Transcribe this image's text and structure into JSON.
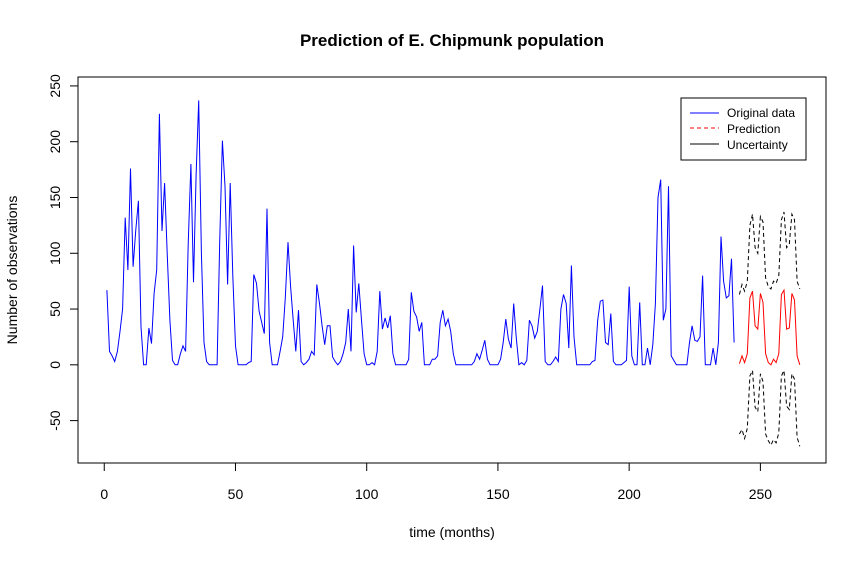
{
  "chart_data": {
    "type": "line",
    "title": "Prediction of E. Chipmunk population",
    "xlabel": "time (months)",
    "ylabel": "Number of observations",
    "xlim": [
      -10,
      275
    ],
    "ylim": [
      -88,
      258
    ],
    "xticks": [
      0,
      50,
      100,
      150,
      200,
      250
    ],
    "yticks": [
      -50,
      0,
      50,
      100,
      150,
      200,
      250
    ],
    "legend_position": "top-right",
    "grid": false,
    "legend": [
      "Original data",
      "Prediction",
      "Uncertainty"
    ],
    "colors": {
      "original": "#0000ff",
      "prediction": "#ff0000",
      "uncertainty": "#000000"
    },
    "series": [
      {
        "key": "original",
        "x_start": 1,
        "values": [
          67,
          12,
          8,
          3,
          12,
          30,
          50,
          132,
          85,
          176,
          88,
          120,
          147,
          34,
          0,
          0,
          33,
          19,
          64,
          85,
          225,
          120,
          163,
          100,
          40,
          4,
          0,
          0,
          10,
          17,
          12,
          108,
          180,
          74,
          170,
          237,
          100,
          20,
          3,
          0,
          0,
          0,
          0,
          110,
          201,
          160,
          72,
          163,
          80,
          17,
          0,
          0,
          0,
          0,
          2,
          3,
          81,
          73,
          48,
          38,
          28,
          140,
          20,
          0,
          0,
          0,
          12,
          25,
          60,
          110,
          70,
          40,
          12,
          49,
          3,
          0,
          2,
          5,
          12,
          9,
          72,
          55,
          35,
          18,
          35,
          35,
          7,
          3,
          0,
          3,
          10,
          20,
          50,
          12,
          107,
          47,
          73,
          40,
          10,
          0,
          0,
          2,
          0,
          12,
          66,
          32,
          42,
          33,
          44,
          10,
          0,
          0,
          0,
          0,
          0,
          5,
          65,
          48,
          43,
          30,
          38,
          0,
          0,
          0,
          5,
          5,
          8,
          38,
          49,
          35,
          41,
          30,
          10,
          0,
          0,
          0,
          0,
          0,
          0,
          0,
          3,
          10,
          5,
          13,
          22,
          5,
          0,
          0,
          0,
          0,
          5,
          20,
          41,
          23,
          15,
          55,
          24,
          0,
          2,
          0,
          4,
          40,
          35,
          24,
          30,
          50,
          71,
          3,
          0,
          0,
          3,
          7,
          3,
          50,
          63,
          55,
          15,
          89,
          25,
          0,
          0,
          0,
          0,
          0,
          0,
          3,
          4,
          40,
          57,
          58,
          20,
          18,
          46,
          3,
          0,
          0,
          0,
          2,
          4,
          70,
          8,
          0,
          0,
          56,
          0,
          0,
          15,
          0,
          18,
          55,
          150,
          166,
          40,
          50,
          160,
          8,
          4,
          0,
          0,
          0,
          0,
          0,
          20,
          35,
          22,
          21,
          25,
          80,
          0,
          0,
          0,
          15,
          0,
          20,
          115,
          75,
          60,
          62,
          95,
          20
        ]
      },
      {
        "key": "prediction",
        "x_start": 242,
        "values": [
          1,
          8,
          2,
          10,
          60,
          66,
          35,
          32,
          64,
          56,
          10,
          2,
          0,
          5,
          2,
          10,
          63,
          67,
          32,
          33,
          64,
          58,
          8,
          0
        ]
      },
      {
        "key": "uncertainty_upper",
        "x_start": 242,
        "values": [
          63,
          72,
          66,
          75,
          125,
          135,
          105,
          100,
          133,
          128,
          78,
          70,
          68,
          75,
          73,
          80,
          130,
          137,
          105,
          108,
          135,
          130,
          75,
          68
        ]
      },
      {
        "key": "uncertainty_lower",
        "x_start": 242,
        "values": [
          -62,
          -58,
          -66,
          -57,
          -10,
          -5,
          -38,
          -42,
          -8,
          -15,
          -62,
          -68,
          -72,
          -67,
          -70,
          -61,
          -10,
          -5,
          -37,
          -40,
          -8,
          -13,
          -65,
          -73
        ]
      }
    ]
  }
}
